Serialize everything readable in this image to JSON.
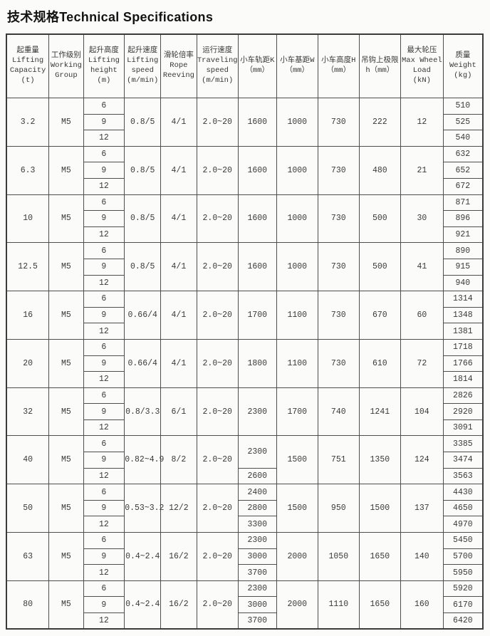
{
  "title": {
    "zh": "技术规格",
    "en": "Technical Specifications"
  },
  "table": {
    "columns": [
      {
        "id": "lifting-capacity",
        "lines": [
          "起重量",
          "Lifting",
          "Capacity",
          "(t)"
        ]
      },
      {
        "id": "working-group",
        "lines": [
          "工作级别",
          "Working",
          "Group"
        ]
      },
      {
        "id": "lifting-height",
        "lines": [
          "起升高度",
          "Lifting",
          "height",
          "(m)"
        ]
      },
      {
        "id": "lifting-speed",
        "lines": [
          "起升速度",
          "Lifting",
          "speed",
          "(m/min)"
        ]
      },
      {
        "id": "rope-reeving",
        "lines": [
          "滑轮倍率",
          "Rope",
          "Reeving"
        ]
      },
      {
        "id": "traveling-speed",
        "lines": [
          "运行速度",
          "Traveling",
          "speed",
          "(m/min)"
        ]
      },
      {
        "id": "trolley-track-gauge",
        "lines": [
          "小车轨距K",
          "（mm）"
        ]
      },
      {
        "id": "trolley-wheel-base",
        "lines": [
          "小车基距W",
          "（mm）"
        ]
      },
      {
        "id": "trolley-height",
        "lines": [
          "小车高度H",
          "（mm）"
        ]
      },
      {
        "id": "hook-upper-limit",
        "lines": [
          "吊钩上极限",
          "h（mm）"
        ]
      },
      {
        "id": "max-wheel-load",
        "lines": [
          "最大轮压",
          "Max Wheel",
          "Load",
          "(kN)"
        ]
      },
      {
        "id": "weight",
        "lines": [
          "质量",
          "Weight",
          "(kg)"
        ]
      }
    ],
    "rows": [
      {
        "capacity": "3.2",
        "group": "M5",
        "heights": [
          "6",
          "9",
          "12"
        ],
        "lifting_speed": "0.8/5",
        "reeving": "4/1",
        "travel_speed": "2.0~20",
        "track_gauge": [
          {
            "v": "1600",
            "span": 3
          }
        ],
        "wheel_base": "1000",
        "trolley_height": "730",
        "hook_limit": "222",
        "wheel_load": "12",
        "weights": [
          "510",
          "525",
          "540"
        ]
      },
      {
        "capacity": "6.3",
        "group": "M5",
        "heights": [
          "6",
          "9",
          "12"
        ],
        "lifting_speed": "0.8/5",
        "reeving": "4/1",
        "travel_speed": "2.0~20",
        "track_gauge": [
          {
            "v": "1600",
            "span": 3
          }
        ],
        "wheel_base": "1000",
        "trolley_height": "730",
        "hook_limit": "480",
        "wheel_load": "21",
        "weights": [
          "632",
          "652",
          "672"
        ]
      },
      {
        "capacity": "10",
        "group": "M5",
        "heights": [
          "6",
          "9",
          "12"
        ],
        "lifting_speed": "0.8/5",
        "reeving": "4/1",
        "travel_speed": "2.0~20",
        "track_gauge": [
          {
            "v": "1600",
            "span": 3
          }
        ],
        "wheel_base": "1000",
        "trolley_height": "730",
        "hook_limit": "500",
        "wheel_load": "30",
        "weights": [
          "871",
          "896",
          "921"
        ]
      },
      {
        "capacity": "12.5",
        "group": "M5",
        "heights": [
          "6",
          "9",
          "12"
        ],
        "lifting_speed": "0.8/5",
        "reeving": "4/1",
        "travel_speed": "2.0~20",
        "track_gauge": [
          {
            "v": "1600",
            "span": 3
          }
        ],
        "wheel_base": "1000",
        "trolley_height": "730",
        "hook_limit": "500",
        "wheel_load": "41",
        "weights": [
          "890",
          "915",
          "940"
        ]
      },
      {
        "capacity": "16",
        "group": "M5",
        "heights": [
          "6",
          "9",
          "12"
        ],
        "lifting_speed": "0.66/4",
        "reeving": "4/1",
        "travel_speed": "2.0~20",
        "track_gauge": [
          {
            "v": "1700",
            "span": 3
          }
        ],
        "wheel_base": "1100",
        "trolley_height": "730",
        "hook_limit": "670",
        "wheel_load": "60",
        "weights": [
          "1314",
          "1348",
          "1381"
        ]
      },
      {
        "capacity": "20",
        "group": "M5",
        "heights": [
          "6",
          "9",
          "12"
        ],
        "lifting_speed": "0.66/4",
        "reeving": "4/1",
        "travel_speed": "2.0~20",
        "track_gauge": [
          {
            "v": "1800",
            "span": 3
          }
        ],
        "wheel_base": "1100",
        "trolley_height": "730",
        "hook_limit": "610",
        "wheel_load": "72",
        "weights": [
          "1718",
          "1766",
          "1814"
        ]
      },
      {
        "capacity": "32",
        "group": "M5",
        "heights": [
          "6",
          "9",
          "12"
        ],
        "lifting_speed": "0.8/3.3",
        "reeving": "6/1",
        "travel_speed": "2.0~20",
        "track_gauge": [
          {
            "v": "2300",
            "span": 3
          }
        ],
        "wheel_base": "1700",
        "trolley_height": "740",
        "hook_limit": "1241",
        "wheel_load": "104",
        "weights": [
          "2826",
          "2920",
          "3091"
        ]
      },
      {
        "capacity": "40",
        "group": "M5",
        "heights": [
          "6",
          "9",
          "12"
        ],
        "lifting_speed": "0.82~4.9",
        "reeving": "8/2",
        "travel_speed": "2.0~20",
        "track_gauge": [
          {
            "v": "2300",
            "span": 2
          },
          {
            "v": "2600",
            "span": 1
          }
        ],
        "wheel_base": "1500",
        "trolley_height": "751",
        "hook_limit": "1350",
        "wheel_load": "124",
        "weights": [
          "3385",
          "3474",
          "3563"
        ]
      },
      {
        "capacity": "50",
        "group": "M5",
        "heights": [
          "6",
          "9",
          "12"
        ],
        "lifting_speed": "0.53~3.2",
        "reeving": "12/2",
        "travel_speed": "2.0~20",
        "track_gauge": [
          {
            "v": "2400",
            "span": 1
          },
          {
            "v": "2800",
            "span": 1
          },
          {
            "v": "3300",
            "span": 1
          }
        ],
        "wheel_base": "1500",
        "trolley_height": "950",
        "hook_limit": "1500",
        "wheel_load": "137",
        "weights": [
          "4430",
          "4650",
          "4970"
        ]
      },
      {
        "capacity": "63",
        "group": "M5",
        "heights": [
          "6",
          "9",
          "12"
        ],
        "lifting_speed": "0.4~2.4",
        "reeving": "16/2",
        "travel_speed": "2.0~20",
        "track_gauge": [
          {
            "v": "2300",
            "span": 1
          },
          {
            "v": "3000",
            "span": 1
          },
          {
            "v": "3700",
            "span": 1
          }
        ],
        "wheel_base": "2000",
        "trolley_height": "1050",
        "hook_limit": "1650",
        "wheel_load": "140",
        "weights": [
          "5450",
          "5700",
          "5950"
        ]
      },
      {
        "capacity": "80",
        "group": "M5",
        "heights": [
          "6",
          "9",
          "12"
        ],
        "lifting_speed": "0.4~2.4",
        "reeving": "16/2",
        "travel_speed": "2.0~20",
        "track_gauge": [
          {
            "v": "2300",
            "span": 1
          },
          {
            "v": "3000",
            "span": 1
          },
          {
            "v": "3700",
            "span": 1
          }
        ],
        "wheel_base": "2000",
        "trolley_height": "1110",
        "hook_limit": "1650",
        "wheel_load": "160",
        "weights": [
          "5920",
          "6170",
          "6420"
        ]
      }
    ]
  }
}
